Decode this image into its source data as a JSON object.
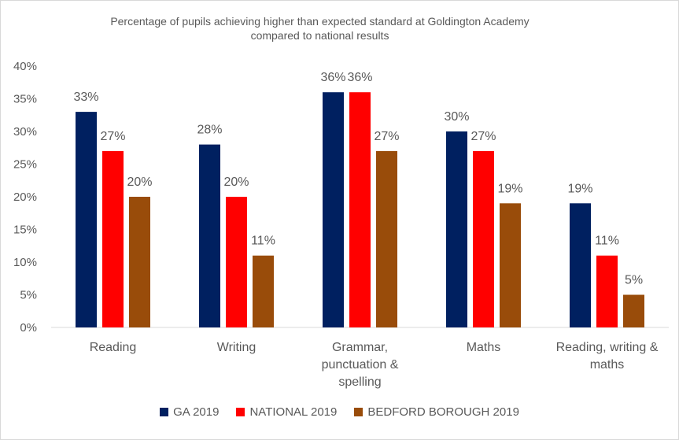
{
  "chart_data": {
    "type": "bar",
    "title": "Percentage of pupils achieving higher than expected standard at Goldington Academy",
    "subtitle": "compared to national results",
    "categories": [
      [
        "Reading"
      ],
      [
        "Writing"
      ],
      [
        "Grammar,",
        "punctuation &",
        "spelling"
      ],
      [
        "Maths"
      ],
      [
        "Reading, writing &",
        "maths"
      ]
    ],
    "series": [
      {
        "name": "GA 2019",
        "color": "#002060",
        "values": [
          33,
          28,
          36,
          30,
          19
        ]
      },
      {
        "name": "NATIONAL 2019",
        "color": "#ff0000",
        "values": [
          27,
          20,
          36,
          27,
          11
        ]
      },
      {
        "name": "BEDFORD BOROUGH 2019",
        "color": "#994c0a",
        "values": [
          20,
          11,
          27,
          19,
          5
        ]
      }
    ],
    "ylim": [
      0,
      40
    ],
    "yticks": [
      "0%",
      "5%",
      "10%",
      "15%",
      "20%",
      "25%",
      "30%",
      "35%",
      "40%"
    ],
    "value_suffix": "%",
    "legend_position": "bottom",
    "grid": false
  }
}
